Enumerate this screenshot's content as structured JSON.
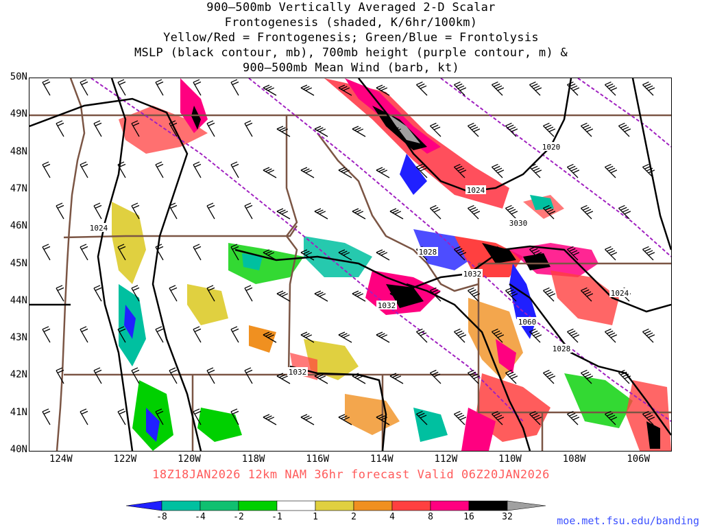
{
  "title_lines": [
    "900—500mb Vertically Averaged 2-D Scalar",
    "Frontogenesis (shaded, K/6hr/100km)",
    "Yellow/Red = Frontogenesis;  Green/Blue = Frontolysis",
    "MSLP (black contour, mb), 700mb height (purple contour, m) &",
    "900—500mb Mean Wind (barb, kt)"
  ],
  "map": {
    "lat_labels": [
      "50N",
      "49N",
      "48N",
      "47N",
      "46N",
      "45N",
      "44N",
      "43N",
      "42N",
      "41N",
      "40N"
    ],
    "lon_labels": [
      "124W",
      "122W",
      "120W",
      "118W",
      "116W",
      "114W",
      "112W",
      "110W",
      "108W",
      "106W"
    ],
    "extent": {
      "lon_min": -125.0,
      "lon_max": -105.0,
      "lat_min": 40.0,
      "lat_max": 50.0
    },
    "contour_labels": [
      "1020",
      "1024",
      "1024",
      "3030",
      "1028",
      "1032",
      "1032",
      "1024",
      "1060",
      "1028",
      "1032"
    ],
    "colors": {
      "state_borders": "#7b5544",
      "mslp": "#000000",
      "height_700mb": "#a020c0",
      "barbs": "#000000"
    }
  },
  "forecast_text": "18Z18JAN2026 12km NAM 36hr forecast Valid 06Z20JAN2026",
  "colorbar": {
    "labels": [
      "-8",
      "-4",
      "-2",
      "-1",
      "1",
      "2",
      "4",
      "8",
      "16",
      "32"
    ],
    "colors": [
      "#2020ff",
      "#00c0a0",
      "#10c070",
      "#00d000",
      "#ffffff",
      "#e0d040",
      "#f09020",
      "#ff4040",
      "#ff0080",
      "#000000",
      "#a0a0a0"
    ]
  },
  "credit": "moe.met.fsu.edu/banding"
}
